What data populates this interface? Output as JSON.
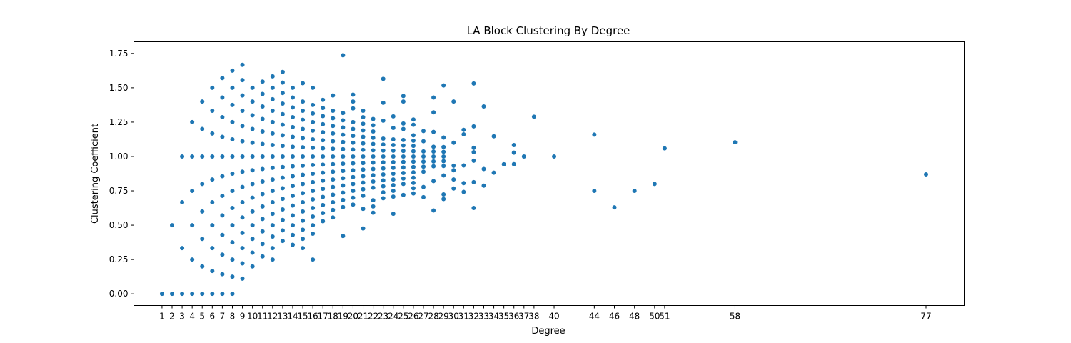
{
  "chart_data": {
    "type": "scatter",
    "title": "LA Block Clustering By Degree",
    "xlabel": "Degree",
    "ylabel": "Clustering Coefficient",
    "xlim": [
      -1.8,
      80.8
    ],
    "ylim": [
      -0.085,
      1.835
    ],
    "grid": false,
    "point_color": "#1f77b4",
    "x_ticks": [
      1,
      2,
      3,
      4,
      5,
      6,
      7,
      8,
      9,
      10,
      11,
      12,
      13,
      14,
      15,
      16,
      17,
      18,
      19,
      20,
      21,
      22,
      23,
      24,
      25,
      26,
      27,
      28,
      29,
      30,
      31,
      32,
      33,
      34,
      35,
      36,
      37,
      38,
      40,
      44,
      46,
      48,
      50,
      51,
      58,
      77
    ],
    "y_ticks": [
      0.0,
      0.25,
      0.5,
      0.75,
      1.0,
      1.25,
      1.5,
      1.75
    ],
    "y_tick_labels": [
      "0.00",
      "0.25",
      "0.50",
      "0.75",
      "1.00",
      "1.25",
      "1.50",
      "1.75"
    ],
    "points": [
      [
        1,
        0.0
      ],
      [
        2,
        0.0
      ],
      [
        2,
        0.5
      ],
      [
        3,
        0.0
      ],
      [
        3,
        0.333
      ],
      [
        3,
        0.667
      ],
      [
        3,
        1.0
      ],
      [
        4,
        0.0
      ],
      [
        4,
        0.25
      ],
      [
        4,
        0.5
      ],
      [
        4,
        0.75
      ],
      [
        4,
        1.0
      ],
      [
        4,
        1.25
      ],
      [
        5,
        0.0
      ],
      [
        5,
        0.2
      ],
      [
        5,
        0.4
      ],
      [
        5,
        0.6
      ],
      [
        5,
        0.8
      ],
      [
        5,
        1.0
      ],
      [
        5,
        1.2
      ],
      [
        5,
        1.4
      ],
      [
        6,
        0.0
      ],
      [
        6,
        0.167
      ],
      [
        6,
        0.333
      ],
      [
        6,
        0.5
      ],
      [
        6,
        0.667
      ],
      [
        6,
        0.833
      ],
      [
        6,
        1.0
      ],
      [
        6,
        1.167
      ],
      [
        6,
        1.333
      ],
      [
        6,
        1.5
      ],
      [
        7,
        0.0
      ],
      [
        7,
        0.143
      ],
      [
        7,
        0.286
      ],
      [
        7,
        0.429
      ],
      [
        7,
        0.571
      ],
      [
        7,
        0.714
      ],
      [
        7,
        0.857
      ],
      [
        7,
        1.0
      ],
      [
        7,
        1.143
      ],
      [
        7,
        1.286
      ],
      [
        7,
        1.429
      ],
      [
        7,
        1.571
      ],
      [
        8,
        0.0
      ],
      [
        8,
        0.125
      ],
      [
        8,
        0.25
      ],
      [
        8,
        0.375
      ],
      [
        8,
        0.5
      ],
      [
        8,
        0.625
      ],
      [
        8,
        0.75
      ],
      [
        8,
        0.875
      ],
      [
        8,
        1.0
      ],
      [
        8,
        1.125
      ],
      [
        8,
        1.25
      ],
      [
        8,
        1.375
      ],
      [
        8,
        1.5
      ],
      [
        8,
        1.625
      ],
      [
        9,
        0.111
      ],
      [
        9,
        0.222
      ],
      [
        9,
        0.333
      ],
      [
        9,
        0.444
      ],
      [
        9,
        0.556
      ],
      [
        9,
        0.667
      ],
      [
        9,
        0.778
      ],
      [
        9,
        0.889
      ],
      [
        9,
        1.0
      ],
      [
        9,
        1.111
      ],
      [
        9,
        1.222
      ],
      [
        9,
        1.333
      ],
      [
        9,
        1.444
      ],
      [
        9,
        1.556
      ],
      [
        9,
        1.667
      ],
      [
        10,
        0.2
      ],
      [
        10,
        0.3
      ],
      [
        10,
        0.4
      ],
      [
        10,
        0.5
      ],
      [
        10,
        0.6
      ],
      [
        10,
        0.7
      ],
      [
        10,
        0.8
      ],
      [
        10,
        0.9
      ],
      [
        10,
        1.0
      ],
      [
        10,
        1.1
      ],
      [
        10,
        1.2
      ],
      [
        10,
        1.3
      ],
      [
        10,
        1.4
      ],
      [
        10,
        1.5
      ],
      [
        11,
        0.273
      ],
      [
        11,
        0.364
      ],
      [
        11,
        0.455
      ],
      [
        11,
        0.545
      ],
      [
        11,
        0.636
      ],
      [
        11,
        0.727
      ],
      [
        11,
        0.818
      ],
      [
        11,
        0.909
      ],
      [
        11,
        1.0
      ],
      [
        11,
        1.091
      ],
      [
        11,
        1.182
      ],
      [
        11,
        1.273
      ],
      [
        11,
        1.364
      ],
      [
        11,
        1.455
      ],
      [
        11,
        1.545
      ],
      [
        12,
        0.25
      ],
      [
        12,
        0.333
      ],
      [
        12,
        0.417
      ],
      [
        12,
        0.5
      ],
      [
        12,
        0.583
      ],
      [
        12,
        0.667
      ],
      [
        12,
        0.75
      ],
      [
        12,
        0.833
      ],
      [
        12,
        0.917
      ],
      [
        12,
        1.0
      ],
      [
        12,
        1.083
      ],
      [
        12,
        1.167
      ],
      [
        12,
        1.25
      ],
      [
        12,
        1.333
      ],
      [
        12,
        1.417
      ],
      [
        12,
        1.5
      ],
      [
        12,
        1.583
      ],
      [
        13,
        0.385
      ],
      [
        13,
        0.462
      ],
      [
        13,
        0.538
      ],
      [
        13,
        0.615
      ],
      [
        13,
        0.692
      ],
      [
        13,
        0.769
      ],
      [
        13,
        0.846
      ],
      [
        13,
        0.923
      ],
      [
        13,
        1.0
      ],
      [
        13,
        1.077
      ],
      [
        13,
        1.154
      ],
      [
        13,
        1.231
      ],
      [
        13,
        1.308
      ],
      [
        13,
        1.385
      ],
      [
        13,
        1.462
      ],
      [
        13,
        1.538
      ],
      [
        13,
        1.615
      ],
      [
        14,
        0.357
      ],
      [
        14,
        0.429
      ],
      [
        14,
        0.5
      ],
      [
        14,
        0.571
      ],
      [
        14,
        0.643
      ],
      [
        14,
        0.714
      ],
      [
        14,
        0.786
      ],
      [
        14,
        0.857
      ],
      [
        14,
        0.929
      ],
      [
        14,
        1.0
      ],
      [
        14,
        1.071
      ],
      [
        14,
        1.143
      ],
      [
        14,
        1.214
      ],
      [
        14,
        1.286
      ],
      [
        14,
        1.357
      ],
      [
        14,
        1.429
      ],
      [
        14,
        1.5
      ],
      [
        15,
        0.333
      ],
      [
        15,
        0.4
      ],
      [
        15,
        0.467
      ],
      [
        15,
        0.533
      ],
      [
        15,
        0.6
      ],
      [
        15,
        0.667
      ],
      [
        15,
        0.733
      ],
      [
        15,
        0.8
      ],
      [
        15,
        0.867
      ],
      [
        15,
        0.933
      ],
      [
        15,
        1.0
      ],
      [
        15,
        1.067
      ],
      [
        15,
        1.133
      ],
      [
        15,
        1.2
      ],
      [
        15,
        1.267
      ],
      [
        15,
        1.333
      ],
      [
        15,
        1.4
      ],
      [
        15,
        1.533
      ],
      [
        16,
        0.25
      ],
      [
        16,
        0.438
      ],
      [
        16,
        0.5
      ],
      [
        16,
        0.563
      ],
      [
        16,
        0.625
      ],
      [
        16,
        0.688
      ],
      [
        16,
        0.75
      ],
      [
        16,
        0.813
      ],
      [
        16,
        0.875
      ],
      [
        16,
        0.938
      ],
      [
        16,
        1.0
      ],
      [
        16,
        1.063
      ],
      [
        16,
        1.125
      ],
      [
        16,
        1.188
      ],
      [
        16,
        1.25
      ],
      [
        16,
        1.313
      ],
      [
        16,
        1.375
      ],
      [
        16,
        1.5
      ],
      [
        17,
        0.529
      ],
      [
        17,
        0.588
      ],
      [
        17,
        0.647
      ],
      [
        17,
        0.706
      ],
      [
        17,
        0.765
      ],
      [
        17,
        0.824
      ],
      [
        17,
        0.882
      ],
      [
        17,
        0.941
      ],
      [
        17,
        1.0
      ],
      [
        17,
        1.059
      ],
      [
        17,
        1.118
      ],
      [
        17,
        1.176
      ],
      [
        17,
        1.235
      ],
      [
        17,
        1.294
      ],
      [
        17,
        1.353
      ],
      [
        17,
        1.412
      ],
      [
        18,
        0.556
      ],
      [
        18,
        0.611
      ],
      [
        18,
        0.667
      ],
      [
        18,
        0.722
      ],
      [
        18,
        0.778
      ],
      [
        18,
        0.833
      ],
      [
        18,
        0.889
      ],
      [
        18,
        0.944
      ],
      [
        18,
        1.0
      ],
      [
        18,
        1.056
      ],
      [
        18,
        1.111
      ],
      [
        18,
        1.167
      ],
      [
        18,
        1.222
      ],
      [
        18,
        1.278
      ],
      [
        18,
        1.333
      ],
      [
        18,
        1.444
      ],
      [
        19,
        0.421
      ],
      [
        19,
        0.632
      ],
      [
        19,
        0.684
      ],
      [
        19,
        0.737
      ],
      [
        19,
        0.789
      ],
      [
        19,
        0.842
      ],
      [
        19,
        0.895
      ],
      [
        19,
        0.947
      ],
      [
        19,
        1.0
      ],
      [
        19,
        1.053
      ],
      [
        19,
        1.105
      ],
      [
        19,
        1.158
      ],
      [
        19,
        1.211
      ],
      [
        19,
        1.263
      ],
      [
        19,
        1.316
      ],
      [
        19,
        1.737
      ],
      [
        20,
        0.65
      ],
      [
        20,
        0.7
      ],
      [
        20,
        0.75
      ],
      [
        20,
        0.8
      ],
      [
        20,
        0.85
      ],
      [
        20,
        0.9
      ],
      [
        20,
        0.95
      ],
      [
        20,
        1.0
      ],
      [
        20,
        1.05
      ],
      [
        20,
        1.1
      ],
      [
        20,
        1.15
      ],
      [
        20,
        1.2
      ],
      [
        20,
        1.25
      ],
      [
        20,
        1.35
      ],
      [
        20,
        1.4
      ],
      [
        20,
        1.45
      ],
      [
        21,
        0.476
      ],
      [
        21,
        0.619
      ],
      [
        21,
        0.714
      ],
      [
        21,
        0.762
      ],
      [
        21,
        0.81
      ],
      [
        21,
        0.857
      ],
      [
        21,
        0.905
      ],
      [
        21,
        0.952
      ],
      [
        21,
        1.0
      ],
      [
        21,
        1.048
      ],
      [
        21,
        1.095
      ],
      [
        21,
        1.143
      ],
      [
        21,
        1.19
      ],
      [
        21,
        1.238
      ],
      [
        21,
        1.286
      ],
      [
        21,
        1.333
      ],
      [
        22,
        0.591
      ],
      [
        22,
        0.636
      ],
      [
        22,
        0.682
      ],
      [
        22,
        0.773
      ],
      [
        22,
        0.818
      ],
      [
        22,
        0.864
      ],
      [
        22,
        0.909
      ],
      [
        22,
        0.955
      ],
      [
        22,
        1.0
      ],
      [
        22,
        1.045
      ],
      [
        22,
        1.091
      ],
      [
        22,
        1.136
      ],
      [
        22,
        1.182
      ],
      [
        22,
        1.227
      ],
      [
        22,
        1.273
      ],
      [
        23,
        0.696
      ],
      [
        23,
        0.739
      ],
      [
        23,
        0.783
      ],
      [
        23,
        0.826
      ],
      [
        23,
        0.87
      ],
      [
        23,
        0.913
      ],
      [
        23,
        0.957
      ],
      [
        23,
        1.0
      ],
      [
        23,
        1.043
      ],
      [
        23,
        1.087
      ],
      [
        23,
        1.13
      ],
      [
        23,
        1.261
      ],
      [
        23,
        1.391
      ],
      [
        23,
        1.565
      ],
      [
        24,
        0.583
      ],
      [
        24,
        0.708
      ],
      [
        24,
        0.75
      ],
      [
        24,
        0.792
      ],
      [
        24,
        0.833
      ],
      [
        24,
        0.875
      ],
      [
        24,
        0.917
      ],
      [
        24,
        0.958
      ],
      [
        24,
        1.0
      ],
      [
        24,
        1.042
      ],
      [
        24,
        1.083
      ],
      [
        24,
        1.125
      ],
      [
        24,
        1.208
      ],
      [
        24,
        1.292
      ],
      [
        25,
        0.72
      ],
      [
        25,
        0.8
      ],
      [
        25,
        0.84
      ],
      [
        25,
        0.88
      ],
      [
        25,
        0.92
      ],
      [
        25,
        0.96
      ],
      [
        25,
        1.0
      ],
      [
        25,
        1.04
      ],
      [
        25,
        1.08
      ],
      [
        25,
        1.12
      ],
      [
        25,
        1.2
      ],
      [
        25,
        1.24
      ],
      [
        25,
        1.4
      ],
      [
        25,
        1.44
      ],
      [
        26,
        0.731
      ],
      [
        26,
        0.769
      ],
      [
        26,
        0.808
      ],
      [
        26,
        0.846
      ],
      [
        26,
        0.885
      ],
      [
        26,
        0.923
      ],
      [
        26,
        0.962
      ],
      [
        26,
        1.0
      ],
      [
        26,
        1.038
      ],
      [
        26,
        1.077
      ],
      [
        26,
        1.115
      ],
      [
        26,
        1.154
      ],
      [
        26,
        1.231
      ],
      [
        26,
        1.269
      ],
      [
        27,
        0.704
      ],
      [
        27,
        0.778
      ],
      [
        27,
        0.889
      ],
      [
        27,
        0.926
      ],
      [
        27,
        0.963
      ],
      [
        27,
        1.0
      ],
      [
        27,
        1.037
      ],
      [
        27,
        1.111
      ],
      [
        27,
        1.185
      ],
      [
        28,
        0.607
      ],
      [
        28,
        0.821
      ],
      [
        28,
        0.929
      ],
      [
        28,
        0.964
      ],
      [
        28,
        1.0
      ],
      [
        28,
        1.036
      ],
      [
        28,
        1.071
      ],
      [
        28,
        1.179
      ],
      [
        28,
        1.321
      ],
      [
        28,
        1.429
      ],
      [
        29,
        0.69
      ],
      [
        29,
        0.724
      ],
      [
        29,
        0.862
      ],
      [
        29,
        0.931
      ],
      [
        29,
        0.966
      ],
      [
        29,
        1.0
      ],
      [
        29,
        1.034
      ],
      [
        29,
        1.069
      ],
      [
        29,
        1.138
      ],
      [
        29,
        1.517
      ],
      [
        30,
        0.767
      ],
      [
        30,
        0.833
      ],
      [
        30,
        0.9
      ],
      [
        30,
        0.933
      ],
      [
        30,
        1.1
      ],
      [
        30,
        1.4
      ],
      [
        31,
        0.742
      ],
      [
        31,
        0.806
      ],
      [
        31,
        0.935
      ],
      [
        31,
        1.161
      ],
      [
        31,
        1.194
      ],
      [
        32,
        0.625
      ],
      [
        32,
        0.813
      ],
      [
        32,
        0.969
      ],
      [
        32,
        1.031
      ],
      [
        32,
        1.063
      ],
      [
        32,
        1.219
      ],
      [
        32,
        1.531
      ],
      [
        33,
        0.788
      ],
      [
        33,
        0.909
      ],
      [
        33,
        1.364
      ],
      [
        34,
        0.882
      ],
      [
        34,
        1.147
      ],
      [
        35,
        0.943
      ],
      [
        36,
        0.944
      ],
      [
        36,
        1.028
      ],
      [
        36,
        1.083
      ],
      [
        37,
        1.0
      ],
      [
        38,
        1.289
      ],
      [
        40,
        1.0
      ],
      [
        44,
        0.75
      ],
      [
        44,
        1.159
      ],
      [
        46,
        0.63
      ],
      [
        48,
        0.75
      ],
      [
        50,
        0.8
      ],
      [
        51,
        1.059
      ],
      [
        58,
        1.103
      ],
      [
        77,
        0.87
      ]
    ]
  }
}
